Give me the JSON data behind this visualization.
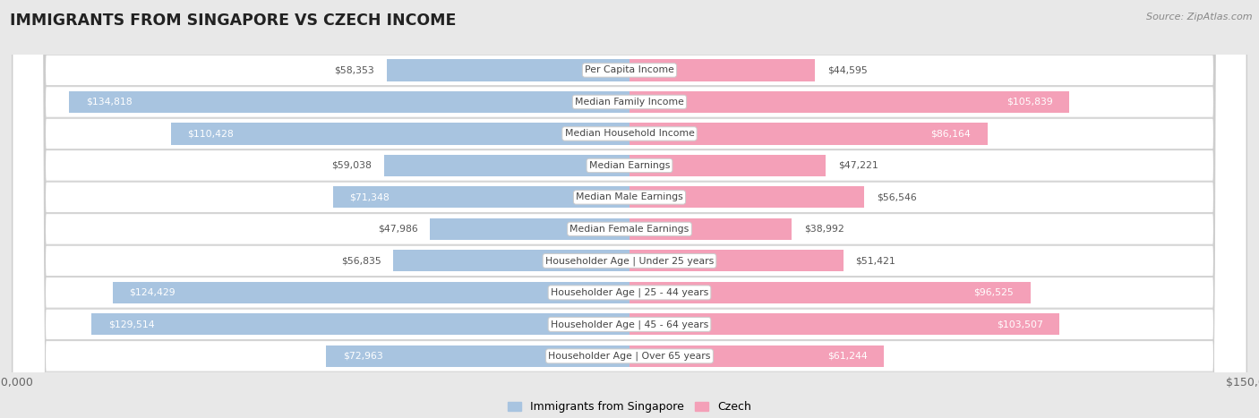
{
  "title": "IMMIGRANTS FROM SINGAPORE VS CZECH INCOME",
  "source": "Source: ZipAtlas.com",
  "categories": [
    "Per Capita Income",
    "Median Family Income",
    "Median Household Income",
    "Median Earnings",
    "Median Male Earnings",
    "Median Female Earnings",
    "Householder Age | Under 25 years",
    "Householder Age | 25 - 44 years",
    "Householder Age | 45 - 64 years",
    "Householder Age | Over 65 years"
  ],
  "singapore_values": [
    58353,
    134818,
    110428,
    59038,
    71348,
    47986,
    56835,
    124429,
    129514,
    72963
  ],
  "czech_values": [
    44595,
    105839,
    86164,
    47221,
    56546,
    38992,
    51421,
    96525,
    103507,
    61244
  ],
  "singapore_labels": [
    "$58,353",
    "$134,818",
    "$110,428",
    "$59,038",
    "$71,348",
    "$47,986",
    "$56,835",
    "$124,429",
    "$129,514",
    "$72,963"
  ],
  "czech_labels": [
    "$44,595",
    "$105,839",
    "$86,164",
    "$47,221",
    "$56,546",
    "$38,992",
    "$51,421",
    "$96,525",
    "$103,507",
    "$61,244"
  ],
  "singapore_color": "#a8c4e0",
  "czech_color": "#f4a0b8",
  "max_value": 150000,
  "legend_singapore": "Immigrants from Singapore",
  "legend_czech": "Czech",
  "background_color": "#e8e8e8",
  "row_bg_color": "#ffffff",
  "label_inside_threshold": 60000,
  "inside_label_color": "#ffffff",
  "outside_label_color": "#555555"
}
